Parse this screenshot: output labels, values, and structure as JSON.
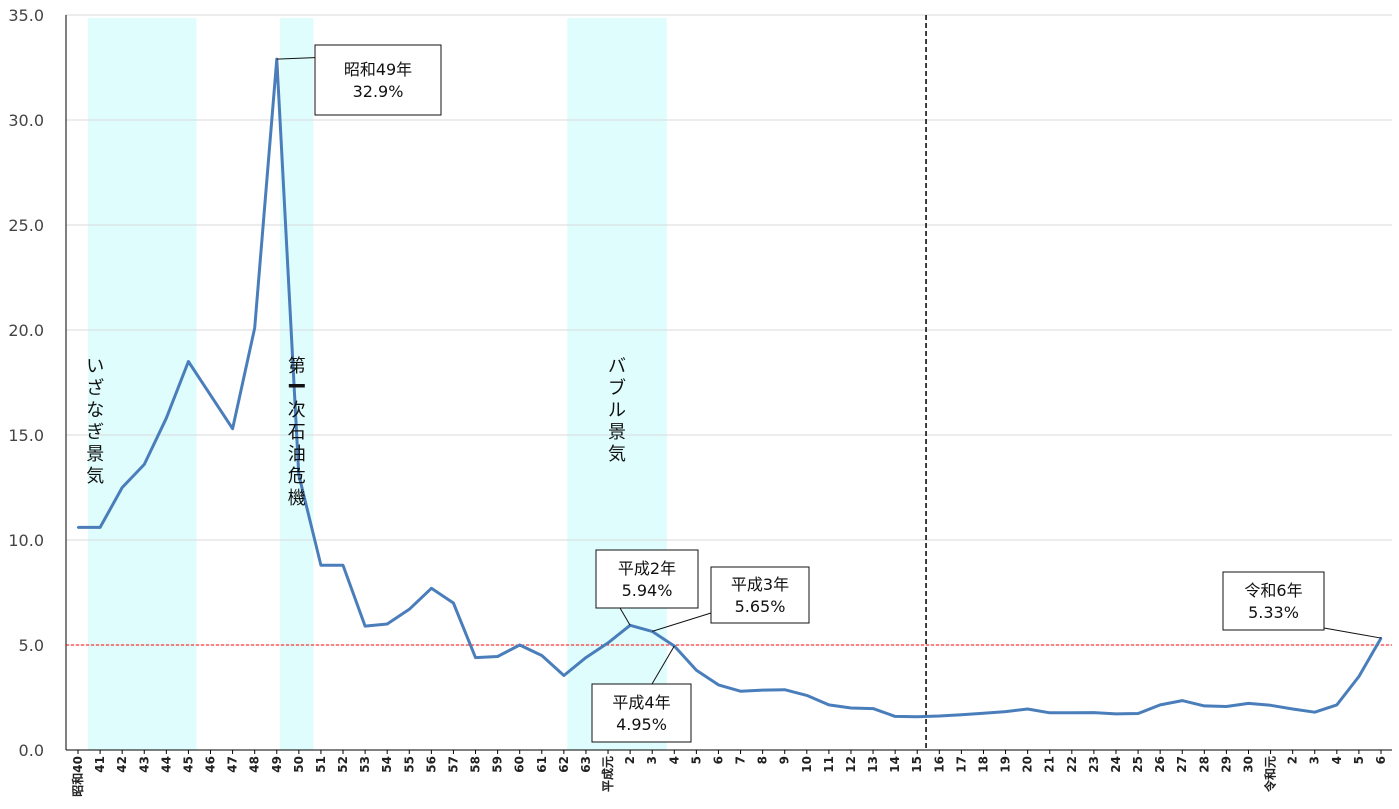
{
  "chart_data": {
    "type": "line",
    "title": "",
    "xlabel": "",
    "ylabel": "",
    "ylim": [
      0,
      35
    ],
    "yticks": [
      "0.0",
      "5.0",
      "10.0",
      "15.0",
      "20.0",
      "25.0",
      "30.0",
      "35.0"
    ],
    "grid": "horizontal",
    "legend": "none",
    "categories": [
      "昭和40",
      "41",
      "42",
      "43",
      "44",
      "45",
      "46",
      "47",
      "48",
      "49",
      "50",
      "51",
      "52",
      "53",
      "54",
      "55",
      "56",
      "57",
      "58",
      "59",
      "60",
      "61",
      "62",
      "63",
      "平成元",
      "2",
      "3",
      "4",
      "5",
      "6",
      "7",
      "8",
      "9",
      "10",
      "11",
      "12",
      "13",
      "14",
      "15",
      "16",
      "17",
      "18",
      "19",
      "20",
      "21",
      "22",
      "23",
      "24",
      "25",
      "26",
      "27",
      "28",
      "29",
      "30",
      "令和元",
      "2",
      "3",
      "4",
      "5",
      "6"
    ],
    "series": [
      {
        "values": [
          10.6,
          10.6,
          12.5,
          13.6,
          15.8,
          18.5,
          16.9,
          15.3,
          20.1,
          32.9,
          13.1,
          8.8,
          8.8,
          5.9,
          6.0,
          6.7,
          7.7,
          7.0,
          4.4,
          4.45,
          5.0,
          4.5,
          3.55,
          4.4,
          5.1,
          5.94,
          5.65,
          4.95,
          3.8,
          3.1,
          2.8,
          2.85,
          2.87,
          2.6,
          2.15,
          2.0,
          1.97,
          1.6,
          1.58,
          1.62,
          1.68,
          1.75,
          1.83,
          1.95,
          1.77,
          1.77,
          1.78,
          1.72,
          1.74,
          2.15,
          2.35,
          2.1,
          2.07,
          2.22,
          2.13,
          1.95,
          1.8,
          2.15,
          3.5,
          5.33
        ],
        "color": "#4a7ebb"
      }
    ],
    "bands": [
      {
        "from": 0,
        "to": 5,
        "label": "いざなぎ景気"
      },
      {
        "from": 8.7,
        "to": 10.3,
        "label": "第一次石油危機"
      },
      {
        "from": 21.7,
        "to": 26.3,
        "label": "バブル景気"
      }
    ],
    "reference_line": {
      "y": 5.0,
      "color": "#ff0000"
    },
    "divider_index": 38.4,
    "annotations": [
      {
        "index": 9,
        "line1": "昭和49年",
        "line2": "32.9%"
      },
      {
        "index": 25,
        "line1": "平成2年",
        "line2": "5.94%"
      },
      {
        "index": 26,
        "line1": "平成3年",
        "line2": "5.65%"
      },
      {
        "index": 27,
        "line1": "平成4年",
        "line2": "4.95%"
      },
      {
        "index": 59,
        "line1": "令和6年",
        "line2": "5.33%"
      }
    ],
    "colors": {
      "band": "#dffdfd",
      "line": "#4a7ebb",
      "grid": "#d9d9d9",
      "axis": "#000000"
    }
  }
}
